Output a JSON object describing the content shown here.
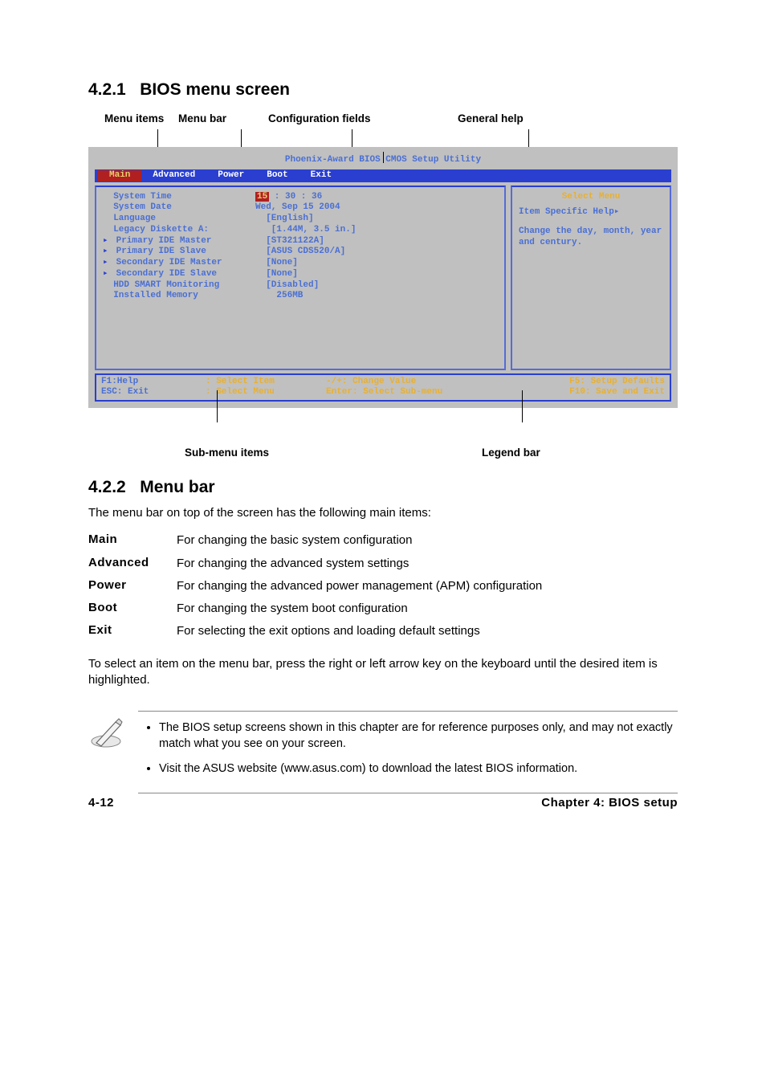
{
  "sections": {
    "s1": {
      "num": "4.2.1",
      "title": "BIOS menu screen"
    },
    "s2": {
      "num": "4.2.2",
      "title": "Menu bar"
    }
  },
  "figure_labels": {
    "menu_items": "Menu items",
    "menu_bar": "Menu bar",
    "config_fields": "Configuration fields",
    "general_help": "General help",
    "sub_menu": "Sub-menu items",
    "legend_bar": "Legend bar"
  },
  "bios": {
    "title": "Phoenix-Award BIOS CMOS Setup Utility",
    "tabs": [
      "Main",
      "Advanced",
      "Power",
      "Boot",
      "Exit"
    ],
    "active_tab": "Main",
    "rows": [
      {
        "k": "  System Time",
        "v_pre": "",
        "v_hl": "15",
        "v_post": " : 30 : 36",
        "arrow": false
      },
      {
        "k": "  System Date",
        "v": "Wed, Sep 15 2004",
        "arrow": false
      },
      {
        "k": "  Language",
        "v": "  [English]",
        "arrow": false
      },
      {
        "k": "",
        "v": "",
        "arrow": false
      },
      {
        "k": "  Legacy Diskette A:",
        "v": "   [1.44M, 3.5 in.]",
        "arrow": false
      },
      {
        "k": "",
        "v": "",
        "arrow": false
      },
      {
        "k": "Primary IDE Master",
        "v": "  [ST321122A]",
        "arrow": true
      },
      {
        "k": "Primary IDE Slave",
        "v": "  [ASUS CDS520/A]",
        "arrow": true
      },
      {
        "k": "Secondary IDE Master",
        "v": "  [None]",
        "arrow": true
      },
      {
        "k": "Secondary IDE Slave",
        "v": "  [None]",
        "arrow": true
      },
      {
        "k": "  HDD SMART Monitoring",
        "v": "  [Disabled]",
        "arrow": false
      },
      {
        "k": "",
        "v": "",
        "arrow": false
      },
      {
        "k": "  Installed Memory",
        "v": "    256MB",
        "arrow": false
      }
    ],
    "help": {
      "title": "Select Menu",
      "line1": "Item Specific Help▸",
      "line2": "Change the day, month, year and century."
    },
    "footer": {
      "c1a": "F1:Help",
      "c1b": "ESC: Exit",
      "c2a": ": Select Item",
      "c2b": ": Select Menu",
      "c3a": "-/+: Change Value",
      "c3b": "Enter: Select Sub-menu",
      "c4a": "F5: Setup Defaults",
      "c4b": "F10: Save and Exit"
    }
  },
  "menubar_text": {
    "intro": "The menu bar on top of the screen has the following main items:",
    "items": [
      {
        "k": "Main",
        "v": "For changing the basic system configuration"
      },
      {
        "k": "Advanced",
        "v": "For changing the advanced system settings"
      },
      {
        "k": "Power",
        "v": "For changing the advanced power management (APM) configuration"
      },
      {
        "k": "Boot",
        "v": "For changing the system boot configuration"
      },
      {
        "k": "Exit",
        "v": "For selecting the exit options and loading default settings"
      }
    ],
    "outro": "To select an item on the menu bar, press the right or left arrow key on the keyboard until the desired item is highlighted."
  },
  "notes": [
    "The BIOS setup screens shown in this chapter are for reference purposes only, and may not exactly match what you see on your screen.",
    "Visit the ASUS website (www.asus.com) to download the latest BIOS information."
  ],
  "footer": {
    "left": "4-12",
    "right": "Chapter 4: BIOS setup"
  },
  "colors": {
    "bios_bg": "#c0c0c0",
    "bios_blue": "#4a6fd4",
    "bios_menubar": "#2a3fd0",
    "bios_red": "#b02020",
    "bios_yellow": "#e8d070",
    "bios_gold": "#e8b030"
  }
}
